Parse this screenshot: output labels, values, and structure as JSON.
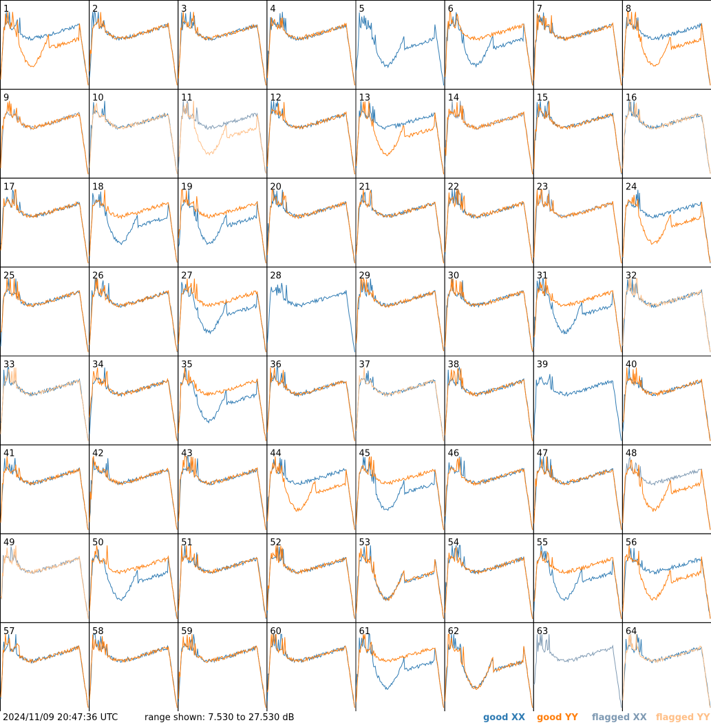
{
  "footer": {
    "timestamp": "2024/11/09 20:47:36 UTC",
    "range": "range shown: 7.530 to 27.530 dB"
  },
  "legend": {
    "items": [
      {
        "label": "good XX",
        "color": "#2f7bb3"
      },
      {
        "label": "good YY",
        "color": "#ff7f0e"
      },
      {
        "label": "flagged XX",
        "color": "#7f9ab3"
      },
      {
        "label": "flagged YY",
        "color": "#ffbf87"
      }
    ]
  },
  "chart_data": {
    "type": "line",
    "panels": [
      "1",
      "2",
      "3",
      "4",
      "5",
      "6",
      "7",
      "8",
      "9",
      "10",
      "11",
      "12",
      "13",
      "14",
      "15",
      "16",
      "17",
      "18",
      "19",
      "20",
      "21",
      "22",
      "23",
      "24",
      "25",
      "26",
      "27",
      "28",
      "29",
      "30",
      "31",
      "32",
      "33",
      "34",
      "35",
      "36",
      "37",
      "38",
      "39",
      "40",
      "41",
      "42",
      "43",
      "44",
      "45",
      "46",
      "47",
      "48",
      "49",
      "50",
      "51",
      "52",
      "53",
      "54",
      "55",
      "56",
      "57",
      "58",
      "59",
      "60",
      "61",
      "62",
      "63",
      "64"
    ],
    "series": [
      {
        "name": "good XX",
        "color": "#2f7bb3"
      },
      {
        "name": "good YY",
        "color": "#ff7f0e"
      },
      {
        "name": "flagged XX",
        "color": "#7f9ab3"
      },
      {
        "name": "flagged YY",
        "color": "#ffbf87"
      }
    ],
    "ylim": [
      7.53,
      27.53
    ],
    "yunit": "dB",
    "panel_styles": {
      "xx_flagged": [
        9,
        11,
        14,
        23,
        48,
        49,
        63
      ],
      "yy_flagged": [
        10,
        11,
        16,
        32,
        33,
        37,
        49,
        64
      ],
      "xx_strong_variant": [
        5,
        6,
        18,
        19,
        27,
        31,
        35,
        45,
        50,
        53,
        55,
        61,
        62
      ],
      "yy_strong_variant": [
        1,
        8,
        11,
        13,
        24,
        44,
        48,
        53,
        56,
        62
      ],
      "yy_absent": [
        5,
        28,
        39,
        63
      ]
    },
    "grid": false
  }
}
